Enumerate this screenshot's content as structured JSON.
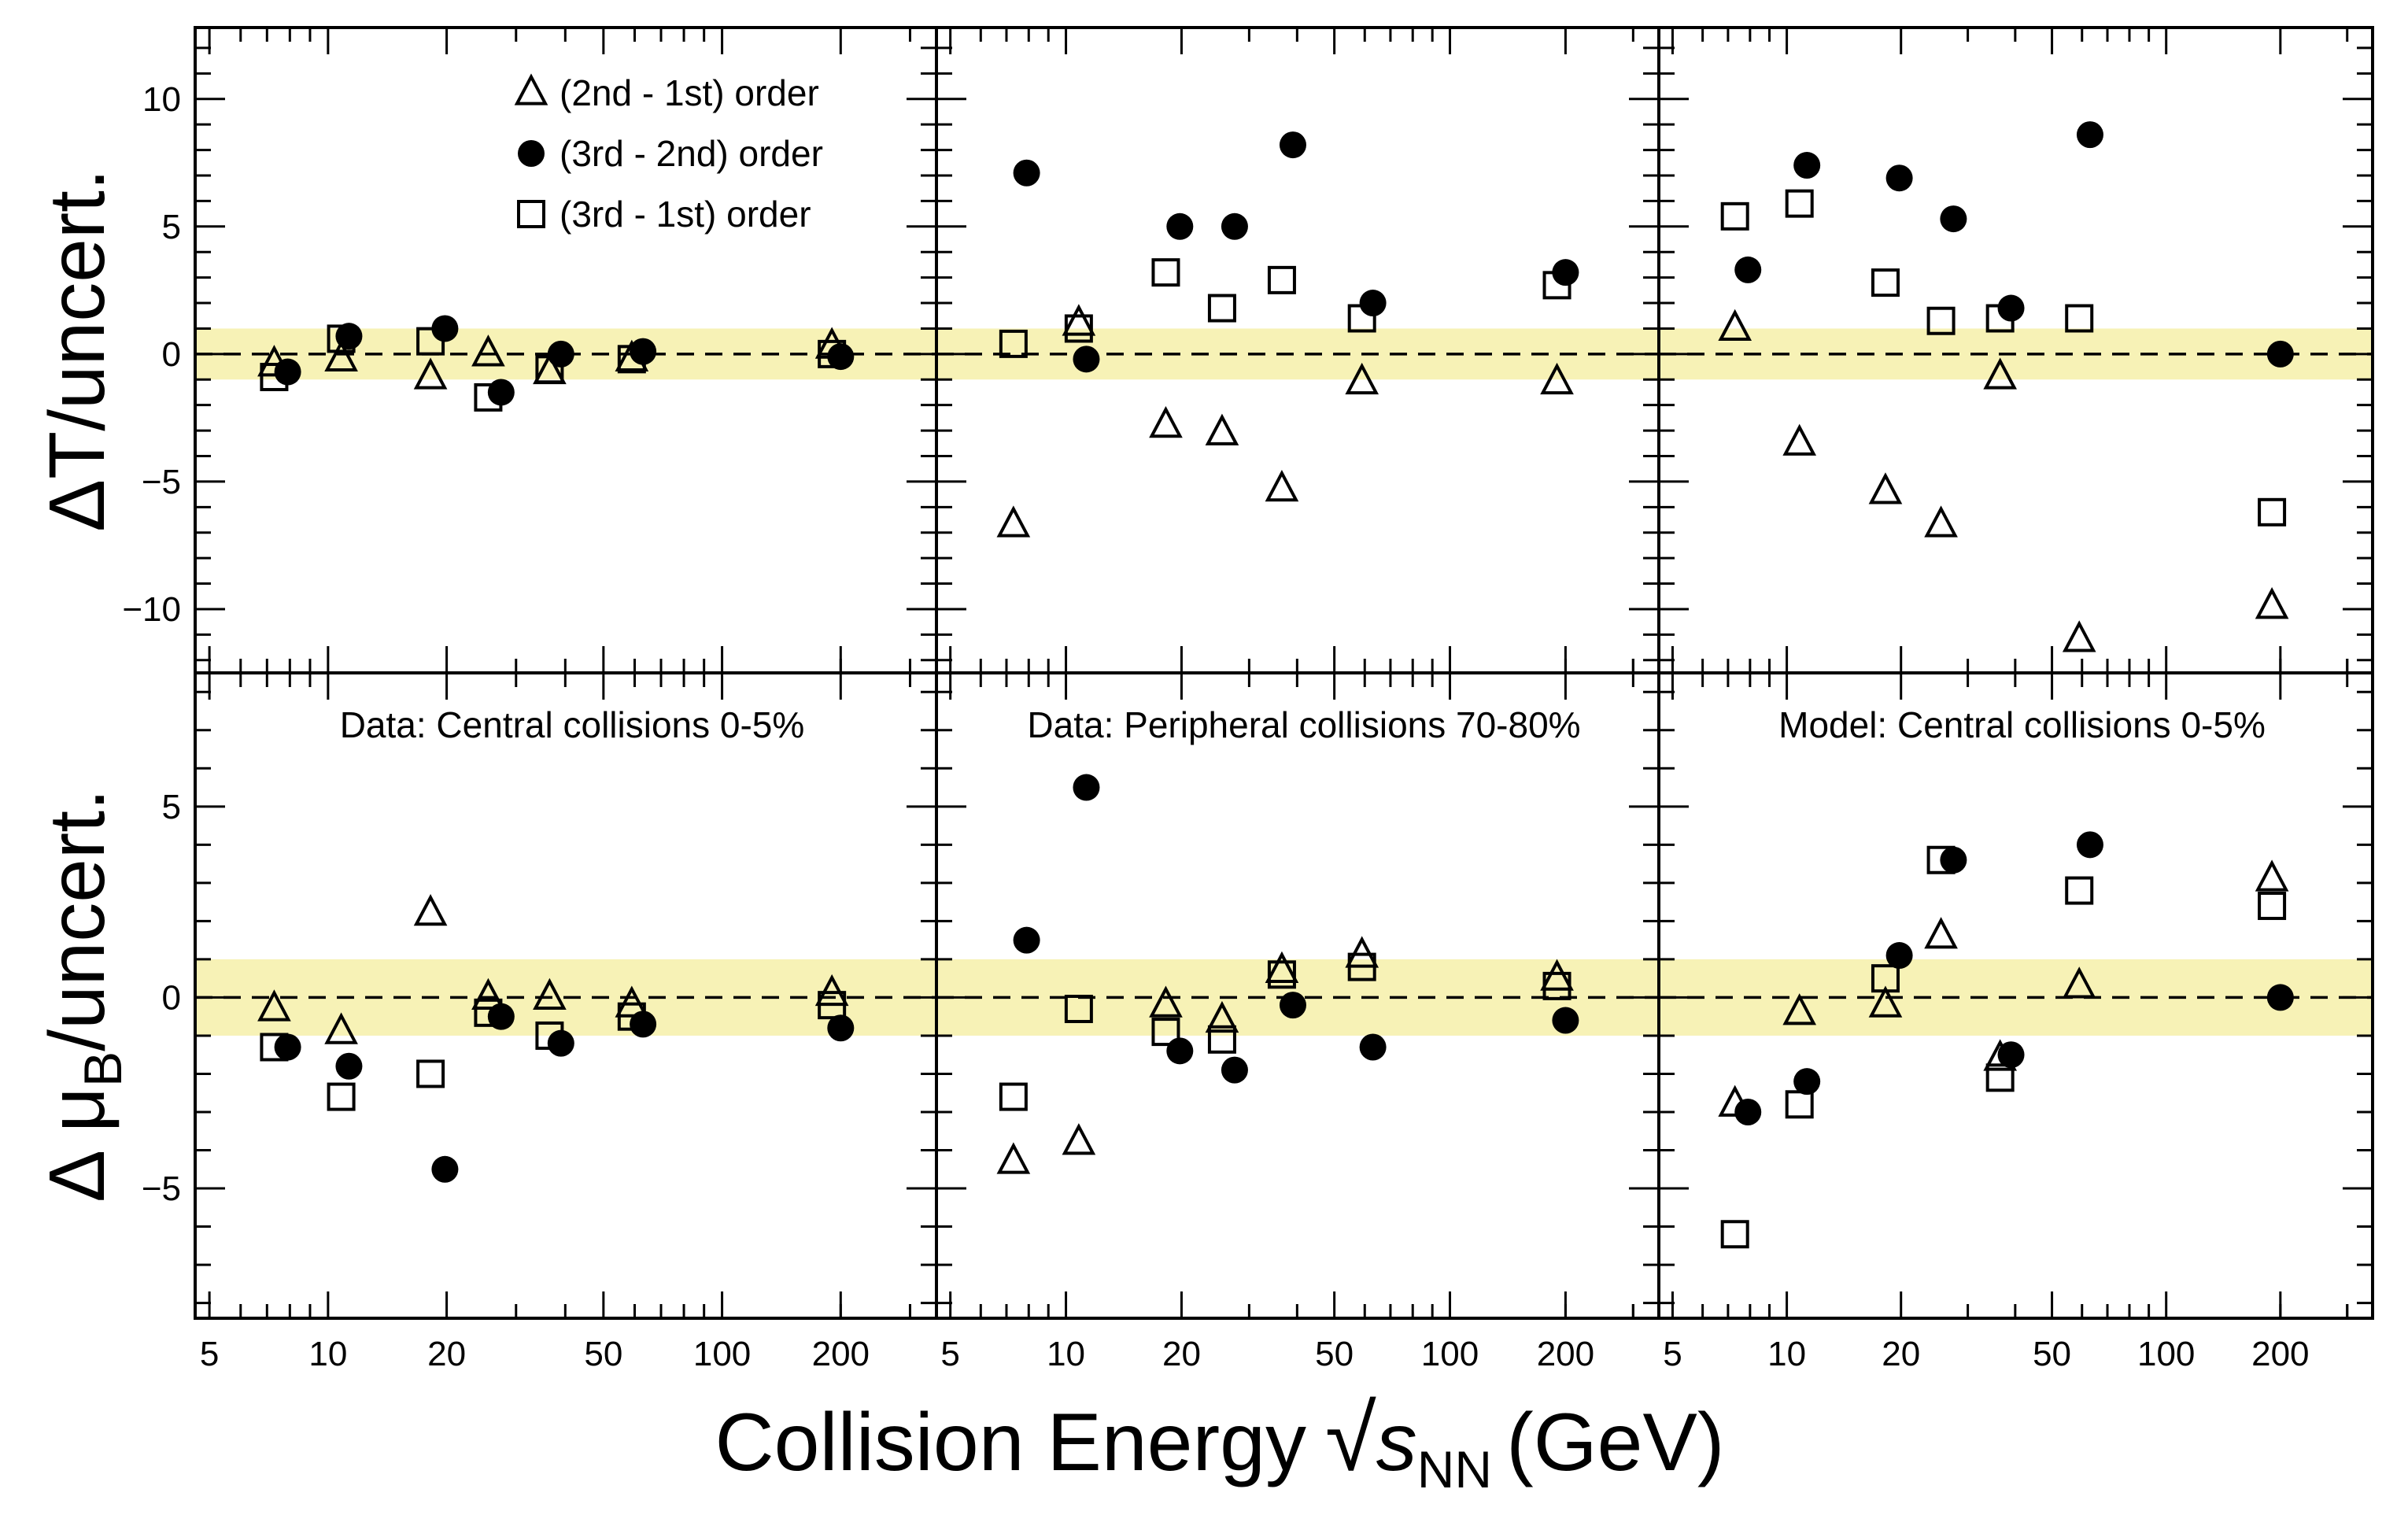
{
  "chart_data": {
    "type": "scatter",
    "description_layout": "3 columns x 2 rows of panels with shared log x-axis",
    "xlabel": {
      "main": "Collision Energy",
      "sqrt_symbol": "√",
      "var": "s",
      "subscript": "NN",
      "unit": "(GeV)"
    },
    "x_scale": "log",
    "xlim": [
      4.6,
      350
    ],
    "x_ticks": [
      5,
      10,
      20,
      50,
      100,
      200
    ],
    "x_tick_labels": [
      "5",
      "10",
      "20",
      "50",
      "100",
      "200"
    ],
    "rows": [
      {
        "ylabel": {
          "prefix": "ΔT/uncert."
        },
        "ylim": [
          -12.5,
          12.8
        ],
        "y_ticks": [
          10,
          5,
          0,
          -5,
          -10
        ],
        "y_tick_labels": [
          "10",
          "5",
          "0",
          "−5",
          "−10"
        ],
        "band": [
          -1,
          1
        ]
      },
      {
        "ylabel": {
          "prefix": "Δ μ",
          "subscript": "B",
          "suffix": "/uncert."
        },
        "ylim": [
          -8.4,
          8.5
        ],
        "y_ticks": [
          5,
          0,
          -5
        ],
        "y_tick_labels": [
          "5",
          "0",
          "−5"
        ],
        "band": [
          -1,
          1
        ]
      }
    ],
    "columns": [
      {
        "label": "Data: Central collisions 0-5%"
      },
      {
        "label": "Data: Peripheral collisions 70-80%"
      },
      {
        "label": "Model: Central collisions 0-5%"
      }
    ],
    "legend": [
      {
        "name": "(2nd - 1st) order",
        "marker": "open-triangle"
      },
      {
        "name": "(3rd - 2nd) order",
        "marker": "filled-circle"
      },
      {
        "name": "(3rd - 1st) order",
        "marker": "open-square"
      }
    ],
    "panels": [
      {
        "row": 0,
        "col": 0,
        "series": [
          {
            "name": "(2nd - 1st) order",
            "x": [
              7.3,
              10.8,
              18.2,
              25.5,
              36.5,
              59,
              190
            ],
            "y": [
              -0.4,
              -0.2,
              -0.9,
              0.0,
              -0.7,
              -0.2,
              0.3
            ]
          },
          {
            "name": "(3rd - 2nd) order",
            "x": [
              7.9,
              11.3,
              19.8,
              27.5,
              39,
              63,
              200
            ],
            "y": [
              -0.7,
              0.7,
              1.0,
              -1.5,
              0.0,
              0.1,
              -0.1
            ]
          },
          {
            "name": "(3rd - 1st) order",
            "x": [
              7.3,
              10.8,
              18.2,
              25.5,
              36.5,
              59,
              190
            ],
            "y": [
              -0.9,
              0.6,
              0.5,
              -1.7,
              -0.6,
              -0.2,
              0.0
            ]
          }
        ]
      },
      {
        "row": 0,
        "col": 1,
        "series": [
          {
            "name": "(2nd - 1st) order",
            "x": [
              7.3,
              10.8,
              18.2,
              25.5,
              36.5,
              59,
              190
            ],
            "y": [
              -6.7,
              1.2,
              -2.8,
              -3.1,
              -5.3,
              -1.1,
              -1.1
            ]
          },
          {
            "name": "(3rd - 2nd) order",
            "x": [
              7.9,
              11.3,
              19.8,
              27.5,
              39,
              63,
              200
            ],
            "y": [
              7.1,
              -0.2,
              5.0,
              5.0,
              8.2,
              2.0,
              3.2
            ]
          },
          {
            "name": "(3rd - 1st) order",
            "x": [
              7.3,
              10.8,
              18.2,
              25.5,
              36.5,
              59,
              190
            ],
            "y": [
              0.4,
              1.0,
              3.2,
              1.8,
              2.9,
              1.4,
              2.7
            ]
          }
        ]
      },
      {
        "row": 0,
        "col": 2,
        "series": [
          {
            "name": "(2nd - 1st) order",
            "x": [
              7.3,
              10.8,
              18.2,
              25.5,
              36.5,
              59,
              190
            ],
            "y": [
              1.0,
              -3.5,
              -5.4,
              -6.7,
              -0.9,
              -11.2,
              -9.9
            ]
          },
          {
            "name": "(3rd - 2nd) order",
            "x": [
              7.9,
              11.3,
              19.8,
              27.5,
              39,
              63,
              200
            ],
            "y": [
              3.3,
              7.4,
              6.9,
              5.3,
              1.8,
              8.6,
              0.0
            ]
          },
          {
            "name": "(3rd - 1st) order",
            "x": [
              7.3,
              10.8,
              18.2,
              25.5,
              36.5,
              59,
              190
            ],
            "y": [
              5.4,
              5.9,
              2.8,
              1.3,
              1.4,
              1.4,
              -6.2
            ]
          }
        ]
      },
      {
        "row": 1,
        "col": 0,
        "series": [
          {
            "name": "(2nd - 1st) order",
            "x": [
              7.3,
              10.8,
              18.2,
              25.5,
              36.5,
              59,
              190
            ],
            "y": [
              -0.3,
              -0.9,
              2.2,
              0.0,
              0.0,
              -0.2,
              0.1
            ]
          },
          {
            "name": "(3rd - 2nd) order",
            "x": [
              7.9,
              11.3,
              19.8,
              27.5,
              39,
              63,
              200
            ],
            "y": [
              -1.3,
              -1.8,
              -4.5,
              -0.5,
              -1.2,
              -0.7,
              -0.8
            ]
          },
          {
            "name": "(3rd - 1st) order",
            "x": [
              7.3,
              10.8,
              18.2,
              25.5,
              36.5,
              59,
              190
            ],
            "y": [
              -1.3,
              -2.6,
              -2.0,
              -0.4,
              -1.0,
              -0.5,
              -0.2
            ]
          }
        ]
      },
      {
        "row": 1,
        "col": 1,
        "series": [
          {
            "name": "(2nd - 1st) order",
            "x": [
              7.3,
              10.8,
              18.2,
              25.5,
              36.5,
              59,
              190
            ],
            "y": [
              -4.3,
              -3.8,
              -0.2,
              -0.6,
              0.7,
              1.1,
              0.5
            ]
          },
          {
            "name": "(3rd - 2nd) order",
            "x": [
              7.9,
              11.3,
              19.8,
              27.5,
              39,
              63,
              200
            ],
            "y": [
              1.5,
              5.5,
              -1.4,
              -1.9,
              -0.2,
              -1.3,
              -0.6
            ]
          },
          {
            "name": "(3rd - 1st) order",
            "x": [
              7.3,
              10.8,
              18.2,
              25.5,
              36.5,
              59,
              190
            ],
            "y": [
              -2.6,
              -0.3,
              -0.9,
              -1.1,
              0.6,
              0.8,
              0.3
            ]
          }
        ]
      },
      {
        "row": 1,
        "col": 2,
        "series": [
          {
            "name": "(2nd - 1st) order",
            "x": [
              7.3,
              10.8,
              18.2,
              25.5,
              36.5,
              59,
              190
            ],
            "y": [
              -2.8,
              -0.4,
              -0.2,
              1.6,
              -1.6,
              0.3,
              3.1
            ]
          },
          {
            "name": "(3rd - 2nd) order",
            "x": [
              7.9,
              11.3,
              19.8,
              27.5,
              39,
              63,
              200
            ],
            "y": [
              -3.0,
              -2.2,
              1.1,
              3.6,
              -1.5,
              4.0,
              0.0
            ]
          },
          {
            "name": "(3rd - 1st) order",
            "x": [
              7.3,
              10.8,
              18.2,
              25.5,
              36.5,
              59,
              190
            ],
            "y": [
              -6.2,
              -2.8,
              0.5,
              3.6,
              -2.1,
              2.8,
              2.4
            ]
          }
        ]
      }
    ]
  }
}
